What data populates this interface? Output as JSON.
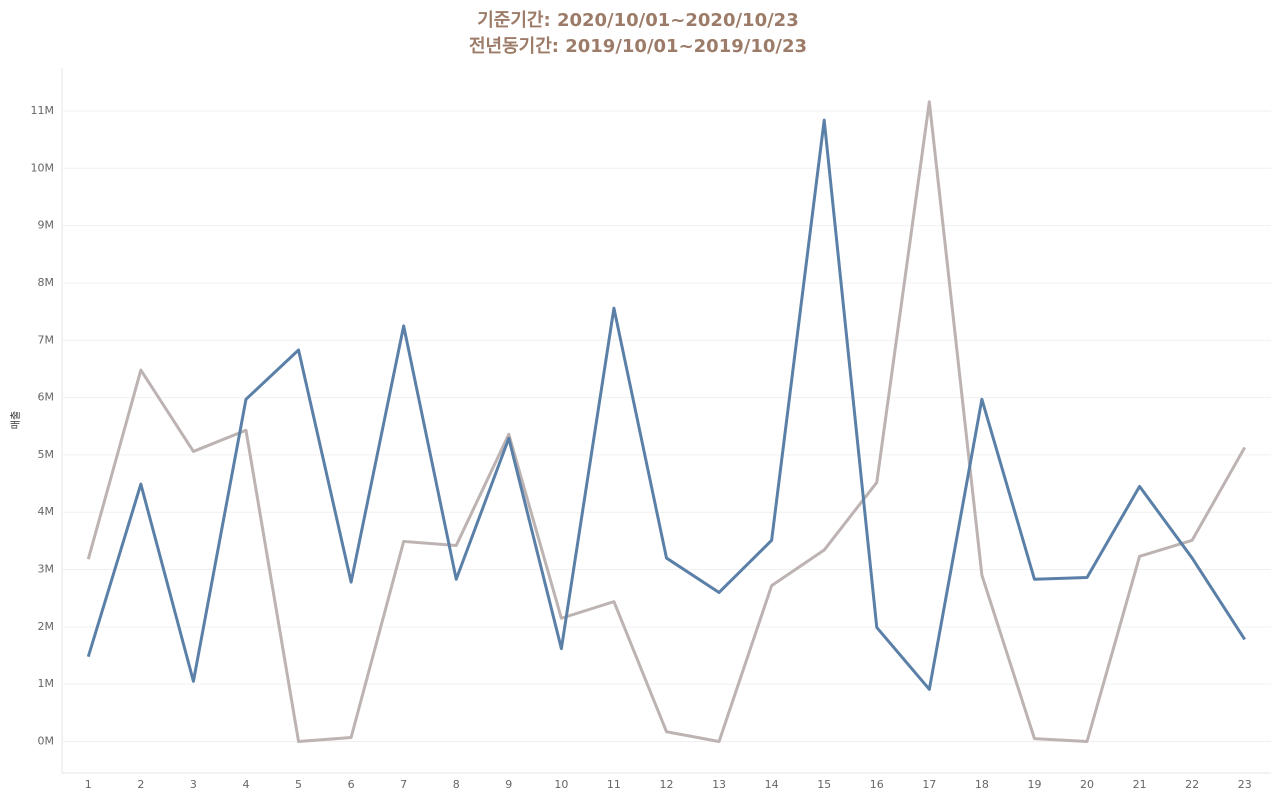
{
  "chart_data": {
    "type": "line",
    "title": "기준기간: 2020/10/01~2020/10/23",
    "subtitle": "전년동기간: 2019/10/01~2019/10/23",
    "y_label": "매출",
    "x": [
      1,
      2,
      3,
      4,
      5,
      6,
      7,
      8,
      9,
      10,
      11,
      12,
      13,
      14,
      15,
      16,
      17,
      18,
      19,
      20,
      21,
      22,
      23
    ],
    "xlim": [
      0.5,
      23.5
    ],
    "xticks": [
      1,
      2,
      3,
      4,
      5,
      6,
      7,
      8,
      9,
      10,
      11,
      12,
      13,
      14,
      15,
      16,
      17,
      18,
      19,
      20,
      21,
      22,
      23
    ],
    "ylim": [
      -0.55,
      11.75
    ],
    "yticks": [
      {
        "value": 0,
        "label": "0M"
      },
      {
        "value": 1,
        "label": "1M"
      },
      {
        "value": 2,
        "label": "2M"
      },
      {
        "value": 3,
        "label": "3M"
      },
      {
        "value": 4,
        "label": "4M"
      },
      {
        "value": 5,
        "label": "5M"
      },
      {
        "value": 6,
        "label": "6M"
      },
      {
        "value": 7,
        "label": "7M"
      },
      {
        "value": 8,
        "label": "8M"
      },
      {
        "value": 9,
        "label": "9M"
      },
      {
        "value": 10,
        "label": "10M"
      },
      {
        "value": 11,
        "label": "11M"
      }
    ],
    "grid": true,
    "series": [
      {
        "color": "#bcb3b2",
        "values": [
          3.18,
          6.48,
          5.06,
          5.43,
          0.0,
          0.07,
          3.49,
          3.42,
          5.36,
          2.15,
          2.44,
          0.17,
          0.0,
          2.72,
          3.34,
          4.52,
          11.16,
          2.9,
          0.05,
          0.0,
          3.23,
          3.51,
          5.13
        ]
      },
      {
        "color": "#5b80a8",
        "values": [
          1.48,
          4.49,
          1.05,
          5.97,
          6.83,
          2.78,
          7.25,
          2.83,
          5.29,
          1.62,
          7.56,
          3.2,
          2.6,
          3.51,
          10.84,
          1.99,
          0.91,
          5.97,
          2.83,
          2.86,
          4.45,
          3.2,
          1.78
        ]
      }
    ]
  }
}
